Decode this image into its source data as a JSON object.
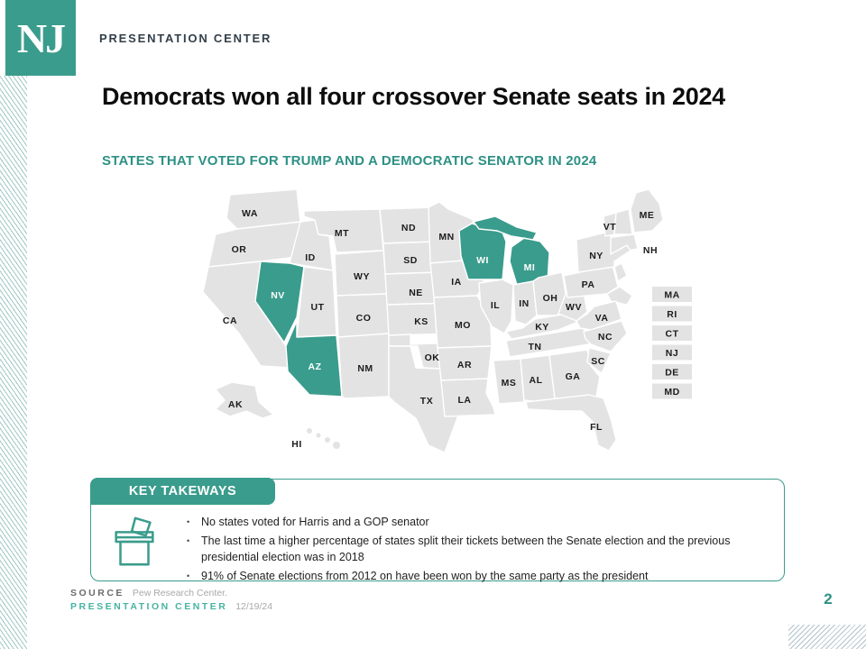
{
  "brand": {
    "logo_text": "NJ",
    "header": "PRESENTATION CENTER"
  },
  "slide": {
    "title": "Democrats won all four crossover Senate seats in 2024",
    "subtitle": "STATES THAT VOTED FOR TRUMP AND A DEMOCRATIC SENATOR IN 2024"
  },
  "map": {
    "type": "choropleth-us",
    "highlight_color": "#3a9c8c",
    "default_color": "#e3e3e3",
    "border_color": "#ffffff",
    "highlighted_states": [
      "NV",
      "AZ",
      "WI",
      "MI"
    ],
    "states": [
      {
        "id": "WA",
        "label": "WA"
      },
      {
        "id": "OR",
        "label": "OR"
      },
      {
        "id": "CA",
        "label": "CA"
      },
      {
        "id": "ID",
        "label": "ID"
      },
      {
        "id": "NV",
        "label": "NV"
      },
      {
        "id": "UT",
        "label": "UT"
      },
      {
        "id": "AZ",
        "label": "AZ"
      },
      {
        "id": "MT",
        "label": "MT"
      },
      {
        "id": "WY",
        "label": "WY"
      },
      {
        "id": "CO",
        "label": "CO"
      },
      {
        "id": "NM",
        "label": "NM"
      },
      {
        "id": "ND",
        "label": "ND"
      },
      {
        "id": "SD",
        "label": "SD"
      },
      {
        "id": "NE",
        "label": "NE"
      },
      {
        "id": "KS",
        "label": "KS"
      },
      {
        "id": "OK",
        "label": "OK"
      },
      {
        "id": "TX",
        "label": "TX"
      },
      {
        "id": "MN",
        "label": "MN"
      },
      {
        "id": "IA",
        "label": "IA"
      },
      {
        "id": "MO",
        "label": "MO"
      },
      {
        "id": "AR",
        "label": "AR"
      },
      {
        "id": "LA",
        "label": "LA"
      },
      {
        "id": "WI",
        "label": "WI"
      },
      {
        "id": "IL",
        "label": "IL"
      },
      {
        "id": "MI",
        "label": "MI"
      },
      {
        "id": "IN",
        "label": "IN"
      },
      {
        "id": "OH",
        "label": "OH"
      },
      {
        "id": "KY",
        "label": "KY"
      },
      {
        "id": "TN",
        "label": "TN"
      },
      {
        "id": "MS",
        "label": "MS"
      },
      {
        "id": "AL",
        "label": "AL"
      },
      {
        "id": "GA",
        "label": "GA"
      },
      {
        "id": "FL",
        "label": "FL"
      },
      {
        "id": "WV",
        "label": "WV"
      },
      {
        "id": "VA",
        "label": "VA"
      },
      {
        "id": "NC",
        "label": "NC"
      },
      {
        "id": "SC",
        "label": "SC"
      },
      {
        "id": "PA",
        "label": "PA"
      },
      {
        "id": "NY",
        "label": "NY"
      },
      {
        "id": "VT",
        "label": "VT"
      },
      {
        "id": "NH",
        "label": "NH"
      },
      {
        "id": "ME",
        "label": "ME"
      },
      {
        "id": "AK",
        "label": "AK"
      },
      {
        "id": "HI",
        "label": "HI"
      }
    ],
    "ne_boxes": [
      "MA",
      "RI",
      "CT",
      "NJ",
      "DE",
      "MD"
    ]
  },
  "takeaways": {
    "header": "KEY TAKEWAYS",
    "icon": "ballot-box-icon",
    "bullet_marker": "•",
    "bullets": [
      "No states voted for Harris and a GOP senator",
      "The last time a higher percentage of states split their tickets between the Senate election and the previous presidential election was in 2018",
      "91% of Senate elections from 2012 on have been won by the same party as the president"
    ]
  },
  "footer": {
    "source_label": "SOURCE",
    "source_text": "Pew Research Center.",
    "brand_label": "PRESENTATION CENTER",
    "date": "12/19/24",
    "page_number": "2"
  }
}
